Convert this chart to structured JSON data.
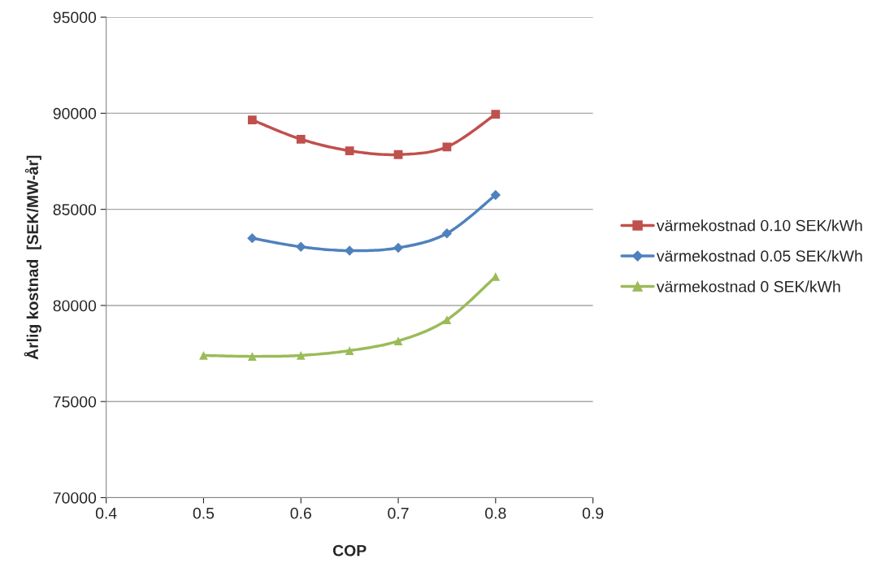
{
  "chart_data": {
    "type": "line",
    "xlabel": "COP",
    "ylabel": "Årlig kostnad  [SEK/MW-år]",
    "x": [
      0.5,
      0.55,
      0.6,
      0.65,
      0.7,
      0.75,
      0.8
    ],
    "series": [
      {
        "name": "värmekostnad 0.10 SEK/kWh",
        "color": "#c0504d",
        "marker": "square",
        "values": [
          null,
          89650,
          88650,
          88050,
          87850,
          88250,
          89950
        ]
      },
      {
        "name": "värmekostnad 0.05 SEK/kWh",
        "color": "#4f81bd",
        "marker": "diamond",
        "values": [
          null,
          83500,
          83050,
          82850,
          83000,
          83750,
          85750
        ]
      },
      {
        "name": "värmekostnad 0 SEK/kWh",
        "color": "#9bbb59",
        "marker": "triangle",
        "values": [
          77400,
          77350,
          77400,
          77650,
          78150,
          79250,
          81500
        ]
      }
    ],
    "xlim": [
      0.4,
      0.9
    ],
    "xticks": [
      0.4,
      0.5,
      0.6,
      0.7,
      0.8,
      0.9
    ],
    "ylim": [
      70000,
      95000
    ],
    "yticks": [
      70000,
      75000,
      80000,
      85000,
      90000,
      95000
    ],
    "grid": "y",
    "legend": "right",
    "line_style": "solid"
  }
}
